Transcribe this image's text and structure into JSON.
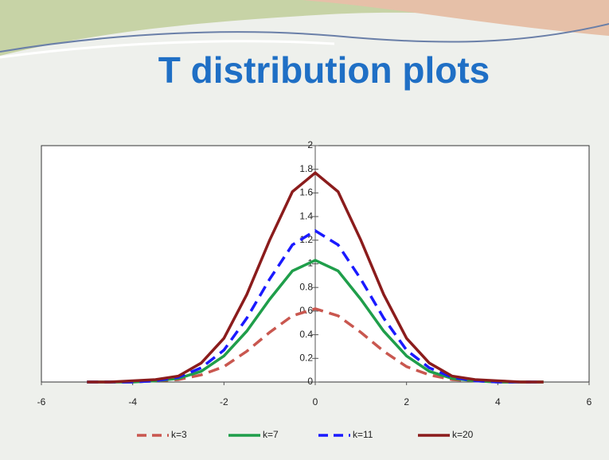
{
  "chart_data": {
    "type": "line",
    "title": "T distribution plots",
    "x": [
      -5,
      -4.5,
      -4,
      -3.5,
      -3,
      -2.5,
      -2,
      -1.5,
      -1,
      -0.5,
      0,
      0.5,
      1,
      1.5,
      2,
      2.5,
      3,
      3.5,
      4,
      4.5,
      5
    ],
    "series": [
      {
        "name": "k=3",
        "color": "#c9574f",
        "dashed": true,
        "values": [
          0,
          0,
          0,
          0.01,
          0.02,
          0.06,
          0.13,
          0.26,
          0.42,
          0.56,
          0.62,
          0.56,
          0.42,
          0.26,
          0.13,
          0.06,
          0.02,
          0.01,
          0,
          0,
          0
        ]
      },
      {
        "name": "k=7",
        "color": "#1f9e4a",
        "dashed": false,
        "values": [
          0,
          0,
          0,
          0.01,
          0.03,
          0.09,
          0.22,
          0.43,
          0.7,
          0.94,
          1.03,
          0.94,
          0.7,
          0.43,
          0.22,
          0.09,
          0.03,
          0.01,
          0,
          0,
          0
        ]
      },
      {
        "name": "k=11",
        "color": "#1a1aff",
        "dashed": true,
        "values": [
          0,
          0,
          0,
          0.01,
          0.04,
          0.12,
          0.27,
          0.54,
          0.87,
          1.16,
          1.28,
          1.16,
          0.87,
          0.54,
          0.27,
          0.12,
          0.04,
          0.01,
          0,
          0,
          0
        ]
      },
      {
        "name": "k=20",
        "color": "#8b1c1c",
        "dashed": false,
        "values": [
          0,
          0,
          0.01,
          0.02,
          0.05,
          0.16,
          0.37,
          0.74,
          1.2,
          1.61,
          1.77,
          1.61,
          1.2,
          0.74,
          0.37,
          0.16,
          0.05,
          0.02,
          0.01,
          0,
          0
        ]
      }
    ],
    "xlim": [
      -6,
      6
    ],
    "xticks": [
      -6,
      -4,
      -2,
      0,
      2,
      4,
      6
    ],
    "ylim": [
      0,
      2
    ],
    "yticks": [
      0,
      0.2,
      0.4,
      0.6,
      0.8,
      1,
      1.2,
      1.4,
      1.6,
      1.8,
      2
    ]
  }
}
